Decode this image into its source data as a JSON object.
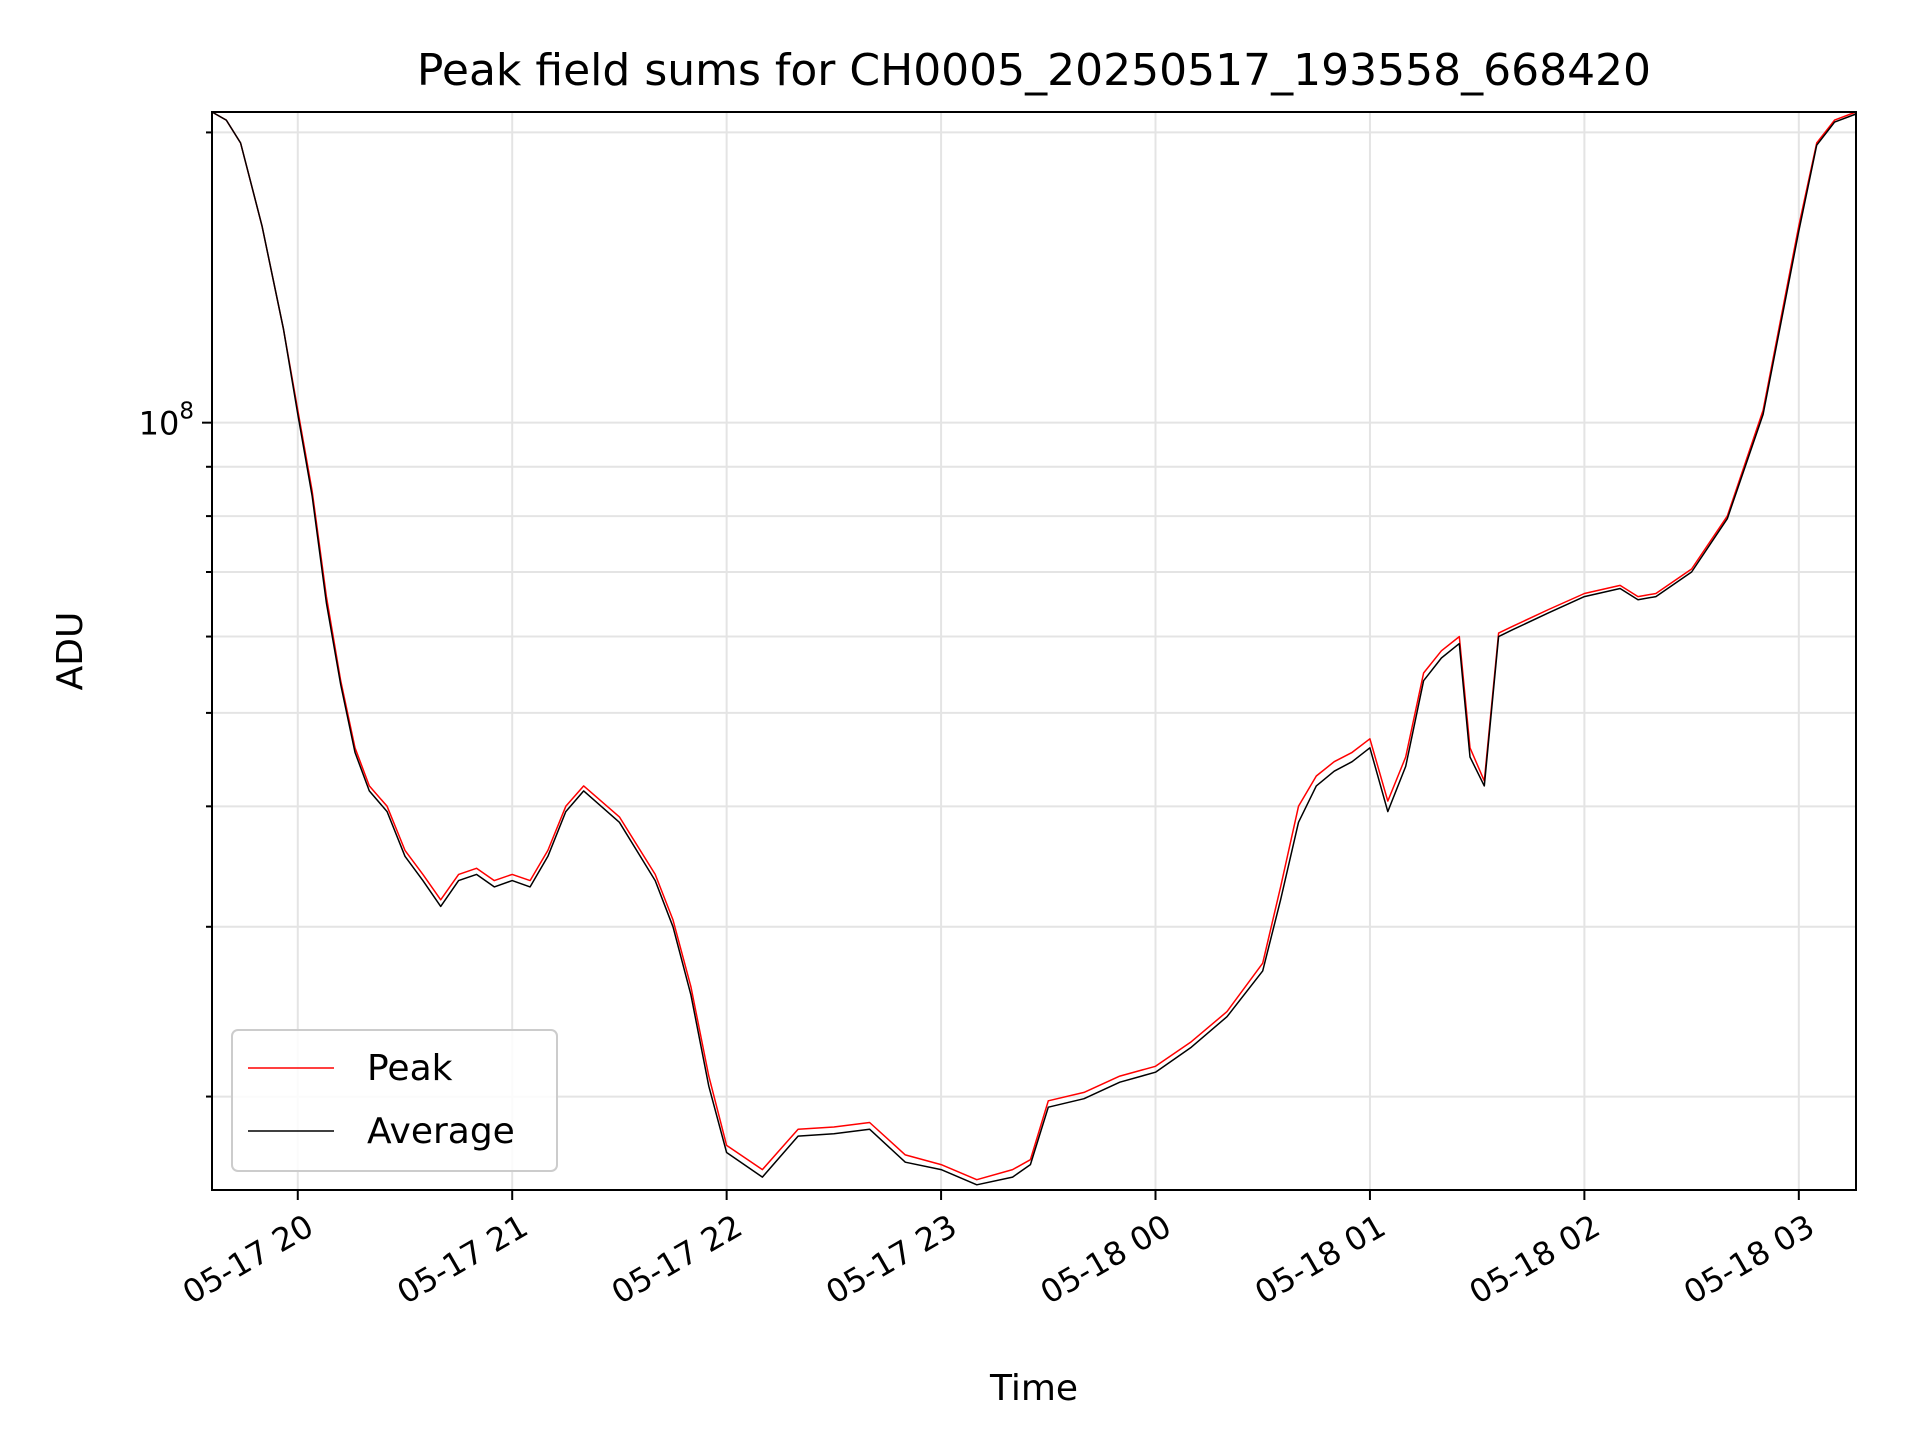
{
  "chart_data": {
    "type": "line",
    "title": "Peak field sums for CH0005_20250517_193558_668420",
    "xlabel": "Time",
    "ylabel": "ADU",
    "yscale": "log",
    "xlim": [
      "2025-05-17 19:36",
      "2025-05-18 03:16"
    ],
    "ylim": [
      16000000,
      210000000
    ],
    "x_ticks": [
      {
        "value": "2025-05-17 20:00",
        "label": "05-17 20"
      },
      {
        "value": "2025-05-17 21:00",
        "label": "05-17 21"
      },
      {
        "value": "2025-05-17 22:00",
        "label": "05-17 22"
      },
      {
        "value": "2025-05-17 23:00",
        "label": "05-17 23"
      },
      {
        "value": "2025-05-18 00:00",
        "label": "05-18 00"
      },
      {
        "value": "2025-05-18 01:00",
        "label": "05-18 01"
      },
      {
        "value": "2025-05-18 02:00",
        "label": "05-18 02"
      },
      {
        "value": "2025-05-18 03:00",
        "label": "05-18 03"
      }
    ],
    "y_ticks": [
      {
        "value": 100000000,
        "base": "10",
        "exponent": "8"
      }
    ],
    "y_minor_ticks": [
      20000000,
      30000000,
      40000000,
      50000000,
      60000000,
      70000000,
      80000000,
      90000000,
      200000000
    ],
    "grid": true,
    "legend_position": "lower-left",
    "series": [
      {
        "name": "Peak",
        "color": "#ff0000",
        "x": [
          "2025-05-17 19:36",
          "2025-05-17 19:40",
          "2025-05-17 19:44",
          "2025-05-17 19:50",
          "2025-05-17 19:56",
          "2025-05-17 20:00",
          "2025-05-17 20:04",
          "2025-05-17 20:08",
          "2025-05-17 20:12",
          "2025-05-17 20:16",
          "2025-05-17 20:20",
          "2025-05-17 20:25",
          "2025-05-17 20:30",
          "2025-05-17 20:35",
          "2025-05-17 20:40",
          "2025-05-17 20:45",
          "2025-05-17 20:50",
          "2025-05-17 20:55",
          "2025-05-17 21:00",
          "2025-05-17 21:05",
          "2025-05-17 21:10",
          "2025-05-17 21:15",
          "2025-05-17 21:20",
          "2025-05-17 21:30",
          "2025-05-17 21:40",
          "2025-05-17 21:45",
          "2025-05-17 21:50",
          "2025-05-17 21:55",
          "2025-05-17 22:00",
          "2025-05-17 22:10",
          "2025-05-17 22:20",
          "2025-05-17 22:30",
          "2025-05-17 22:40",
          "2025-05-17 22:50",
          "2025-05-17 23:00",
          "2025-05-17 23:10",
          "2025-05-17 23:20",
          "2025-05-17 23:25",
          "2025-05-17 23:30",
          "2025-05-17 23:40",
          "2025-05-17 23:50",
          "2025-05-18 00:00",
          "2025-05-18 00:10",
          "2025-05-18 00:20",
          "2025-05-18 00:30",
          "2025-05-18 00:35",
          "2025-05-18 00:40",
          "2025-05-18 00:45",
          "2025-05-18 00:50",
          "2025-05-18 00:55",
          "2025-05-18 01:00",
          "2025-05-18 01:05",
          "2025-05-18 01:10",
          "2025-05-18 01:15",
          "2025-05-18 01:20",
          "2025-05-18 01:25",
          "2025-05-18 01:28",
          "2025-05-18 01:32",
          "2025-05-18 01:36",
          "2025-05-18 01:40",
          "2025-05-18 01:50",
          "2025-05-18 02:00",
          "2025-05-18 02:10",
          "2025-05-18 02:15",
          "2025-05-18 02:20",
          "2025-05-18 02:30",
          "2025-05-18 02:40",
          "2025-05-18 02:50",
          "2025-05-18 03:00",
          "2025-05-18 03:05",
          "2025-05-18 03:10",
          "2025-05-18 03:16"
        ],
        "values": [
          210000000,
          206000000,
          195000000,
          160000000,
          125000000,
          103000000,
          85000000,
          66000000,
          54000000,
          46000000,
          42000000,
          40000000,
          36000000,
          34000000,
          32000000,
          34000000,
          34500000,
          33500000,
          34000000,
          33500000,
          36000000,
          40000000,
          42000000,
          39000000,
          34000000,
          30500000,
          26000000,
          21000000,
          17800000,
          16800000,
          18500000,
          18600000,
          18800000,
          17400000,
          17000000,
          16400000,
          16800000,
          17200000,
          19800000,
          20200000,
          21000000,
          21500000,
          22800000,
          24500000,
          27500000,
          33000000,
          40000000,
          43000000,
          44500000,
          45500000,
          47000000,
          40500000,
          45000000,
          55000000,
          58000000,
          60000000,
          46000000,
          42500000,
          60500000,
          61500000,
          64000000,
          66500000,
          67800000,
          66000000,
          66500000,
          70500000,
          80000000,
          103000000,
          160000000,
          195000000,
          206000000,
          210000000
        ]
      },
      {
        "name": "Average",
        "color": "#000000",
        "x": [
          "2025-05-17 19:36",
          "2025-05-17 19:40",
          "2025-05-17 19:44",
          "2025-05-17 19:50",
          "2025-05-17 19:56",
          "2025-05-17 20:00",
          "2025-05-17 20:04",
          "2025-05-17 20:08",
          "2025-05-17 20:12",
          "2025-05-17 20:16",
          "2025-05-17 20:20",
          "2025-05-17 20:25",
          "2025-05-17 20:30",
          "2025-05-17 20:35",
          "2025-05-17 20:40",
          "2025-05-17 20:45",
          "2025-05-17 20:50",
          "2025-05-17 20:55",
          "2025-05-17 21:00",
          "2025-05-17 21:05",
          "2025-05-17 21:10",
          "2025-05-17 21:15",
          "2025-05-17 21:20",
          "2025-05-17 21:30",
          "2025-05-17 21:40",
          "2025-05-17 21:45",
          "2025-05-17 21:50",
          "2025-05-17 21:55",
          "2025-05-17 22:00",
          "2025-05-17 22:10",
          "2025-05-17 22:20",
          "2025-05-17 22:30",
          "2025-05-17 22:40",
          "2025-05-17 22:50",
          "2025-05-17 23:00",
          "2025-05-17 23:10",
          "2025-05-17 23:20",
          "2025-05-17 23:25",
          "2025-05-17 23:30",
          "2025-05-17 23:40",
          "2025-05-17 23:50",
          "2025-05-18 00:00",
          "2025-05-18 00:10",
          "2025-05-18 00:20",
          "2025-05-18 00:30",
          "2025-05-18 00:35",
          "2025-05-18 00:40",
          "2025-05-18 00:45",
          "2025-05-18 00:50",
          "2025-05-18 00:55",
          "2025-05-18 01:00",
          "2025-05-18 01:05",
          "2025-05-18 01:10",
          "2025-05-18 01:15",
          "2025-05-18 01:20",
          "2025-05-18 01:25",
          "2025-05-18 01:28",
          "2025-05-18 01:32",
          "2025-05-18 01:36",
          "2025-05-18 01:40",
          "2025-05-18 01:50",
          "2025-05-18 02:00",
          "2025-05-18 02:10",
          "2025-05-18 02:15",
          "2025-05-18 02:20",
          "2025-05-18 02:30",
          "2025-05-18 02:40",
          "2025-05-18 02:50",
          "2025-05-18 03:00",
          "2025-05-18 03:05",
          "2025-05-18 03:10",
          "2025-05-18 03:16"
        ],
        "values": [
          210000000,
          206000000,
          195000000,
          160000000,
          125000000,
          102000000,
          84000000,
          65000000,
          53500000,
          45500000,
          41500000,
          39500000,
          35500000,
          33500000,
          31500000,
          33500000,
          34000000,
          33000000,
          33500000,
          33000000,
          35500000,
          39500000,
          41500000,
          38500000,
          33500000,
          30000000,
          25500000,
          20500000,
          17500000,
          16500000,
          18200000,
          18300000,
          18500000,
          17100000,
          16800000,
          16200000,
          16500000,
          17000000,
          19500000,
          19900000,
          20700000,
          21200000,
          22500000,
          24200000,
          27000000,
          32000000,
          38500000,
          42000000,
          43500000,
          44500000,
          46000000,
          39500000,
          44000000,
          54000000,
          57000000,
          59000000,
          45000000,
          42000000,
          60000000,
          61000000,
          63500000,
          66000000,
          67300000,
          65500000,
          66000000,
          70000000,
          79500000,
          102000000,
          158000000,
          194000000,
          205000000,
          209000000
        ]
      }
    ]
  }
}
